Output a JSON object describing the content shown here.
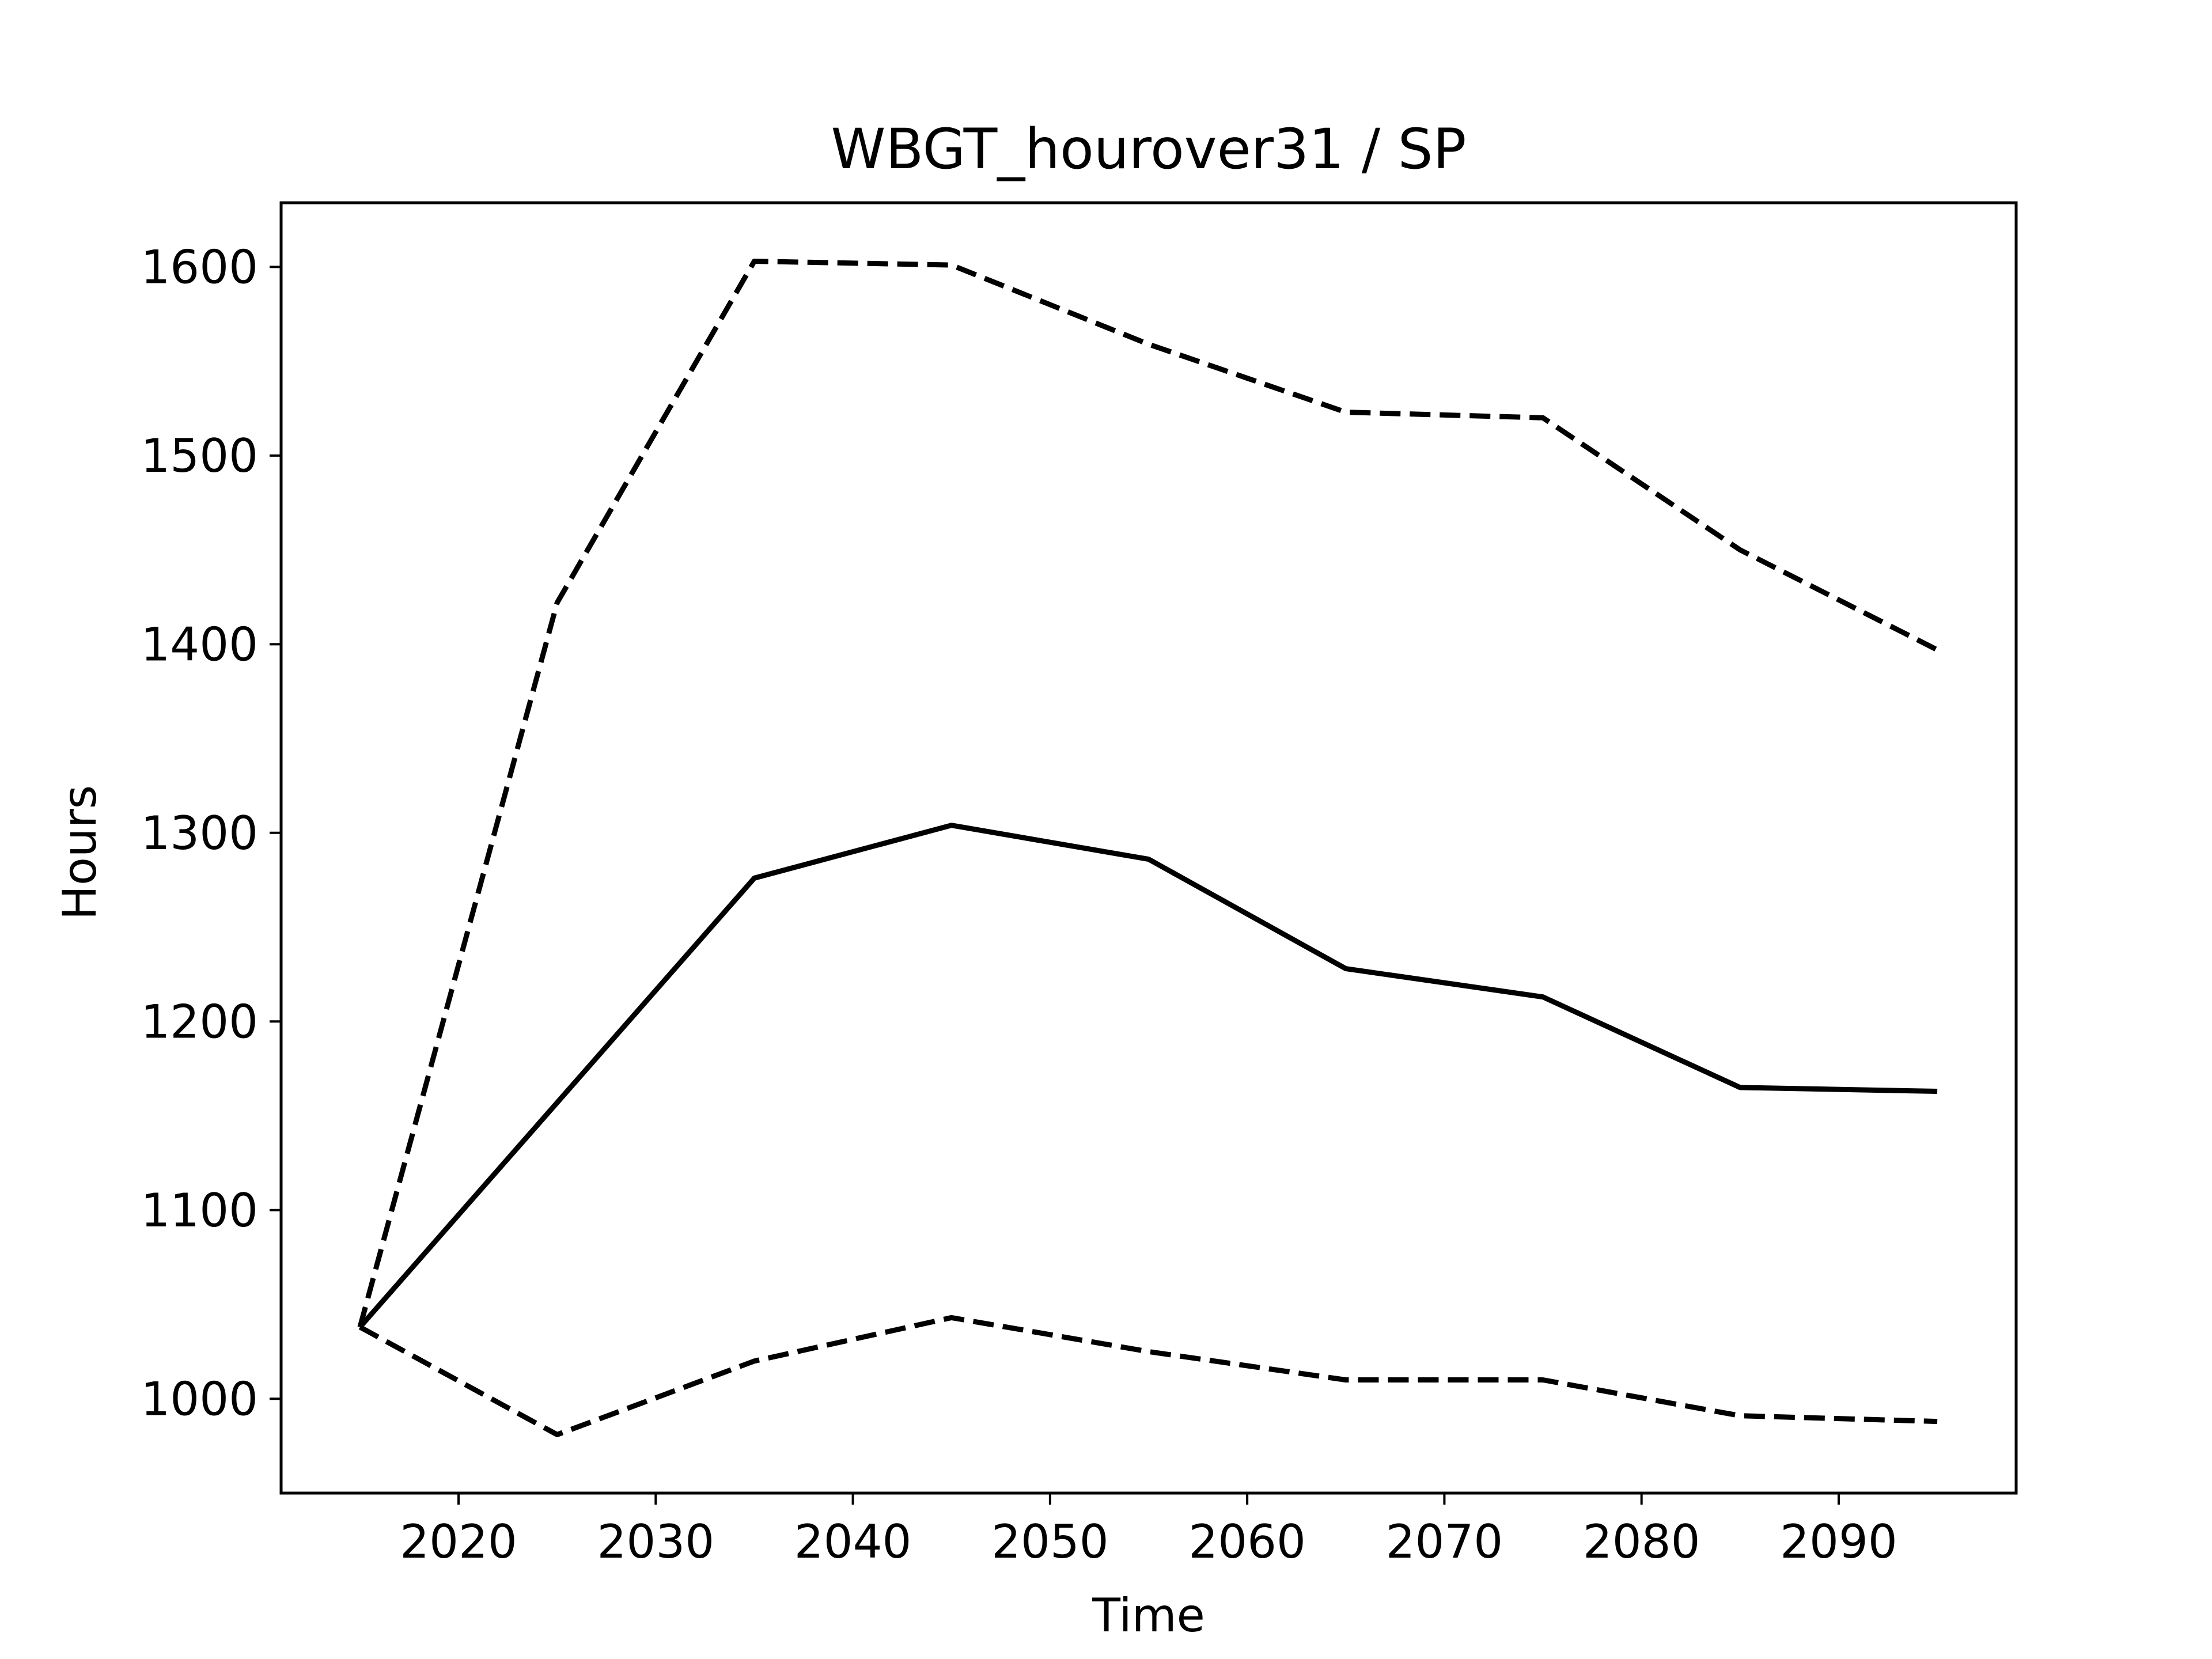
{
  "chart_data": {
    "type": "line",
    "title": "WBGT_hourover31 / SP",
    "xlabel": "Time",
    "ylabel": "Hours",
    "xlim": [
      2011,
      2099
    ],
    "ylim": [
      950,
      1634
    ],
    "x_ticks": [
      2020,
      2030,
      2040,
      2050,
      2060,
      2070,
      2080,
      2090
    ],
    "y_ticks": [
      1000,
      1100,
      1200,
      1300,
      1400,
      1500,
      1600
    ],
    "x": [
      2015,
      2025,
      2035,
      2045,
      2055,
      2065,
      2075,
      2085,
      2095
    ],
    "series": [
      {
        "style": "solid",
        "color": "#000000",
        "values": [
          1038,
          1157,
          1276,
          1304,
          1286,
          1228,
          1213,
          1165,
          1163
        ]
      },
      {
        "style": "dashed",
        "color": "#000000",
        "values": [
          1038,
          1422,
          1603,
          1601,
          1559,
          1523,
          1520,
          1450,
          1397
        ]
      },
      {
        "style": "dashed",
        "color": "#000000",
        "values": [
          1038,
          981,
          1020,
          1043,
          1025,
          1010,
          1010,
          991,
          988
        ]
      }
    ],
    "grid": false,
    "legend": "none"
  }
}
